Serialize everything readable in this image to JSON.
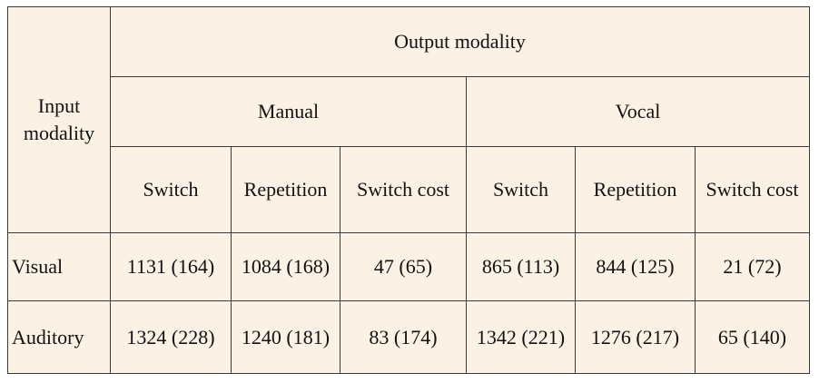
{
  "table": {
    "corner_header": [
      "Input",
      "modality"
    ],
    "output_header": "Output modality",
    "groups": [
      "Manual",
      "Vocal"
    ],
    "columns": [
      "Switch",
      "Repetition",
      "Switch cost",
      "Switch",
      "Repetition",
      "Switch cost"
    ],
    "rows": [
      {
        "label": "Visual",
        "cells": [
          "1131 (164)",
          "1084 (168)",
          "47 (65)",
          "865 (113)",
          "844 (125)",
          "21 (72)"
        ]
      },
      {
        "label": "Auditory",
        "cells": [
          "1324 (228)",
          "1240 (181)",
          "83 (174)",
          "1342 (221)",
          "1276 (217)",
          "65 (140)"
        ]
      }
    ]
  }
}
